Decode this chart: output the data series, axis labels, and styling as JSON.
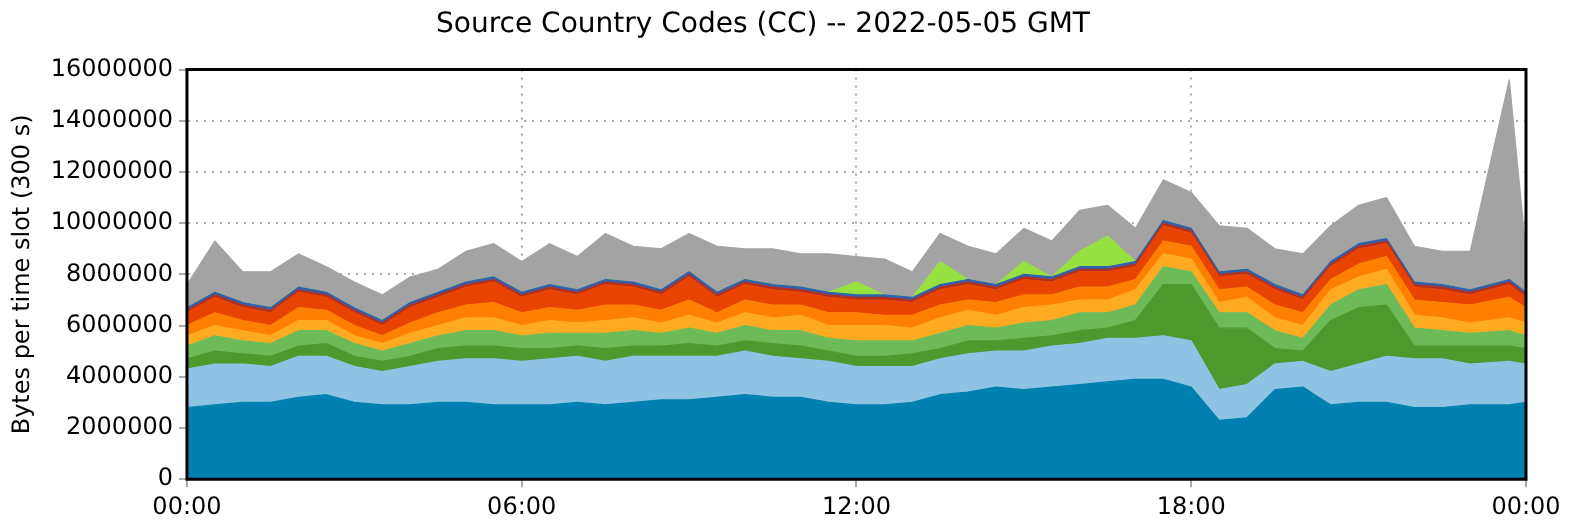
{
  "chart_data": {
    "type": "area",
    "stacked": true,
    "title": "Source Country Codes (CC) -- 2022-05-05 GMT",
    "ylabel": "Bytes per time slot (300 s)",
    "x": [
      0,
      0.5,
      1,
      1.5,
      2,
      2.5,
      3,
      3.5,
      4,
      4.5,
      5,
      5.5,
      6,
      6.5,
      7,
      7.5,
      8,
      8.5,
      9,
      9.5,
      10,
      10.5,
      11,
      11.5,
      12,
      12.5,
      13,
      13.5,
      14,
      14.5,
      15,
      15.5,
      16,
      16.5,
      17,
      17.5,
      18,
      18.5,
      19,
      19.5,
      20,
      20.5,
      21,
      21.5,
      22,
      22.5,
      23,
      23.7,
      24
    ],
    "xlim": [
      0,
      24
    ],
    "xticks": [
      {
        "value": 0,
        "label": "00:00"
      },
      {
        "value": 6,
        "label": "06:00"
      },
      {
        "value": 12,
        "label": "12:00"
      },
      {
        "value": 18,
        "label": "18:00"
      },
      {
        "value": 24,
        "label": "00:00"
      }
    ],
    "ylim": [
      0,
      16000000
    ],
    "yticks": [
      0,
      2000000,
      4000000,
      6000000,
      8000000,
      10000000,
      12000000,
      14000000,
      16000000
    ],
    "grid": true,
    "legend": false,
    "marker": "none",
    "series": [
      {
        "color": "#0080b0",
        "values": [
          2800000,
          2900000,
          3000000,
          3000000,
          3200000,
          3300000,
          3000000,
          2900000,
          2900000,
          3000000,
          3000000,
          2900000,
          2900000,
          2900000,
          3000000,
          2900000,
          3000000,
          3100000,
          3100000,
          3200000,
          3300000,
          3200000,
          3200000,
          3000000,
          2900000,
          2900000,
          3000000,
          3300000,
          3400000,
          3600000,
          3500000,
          3600000,
          3700000,
          3800000,
          3900000,
          3900000,
          3600000,
          2300000,
          2400000,
          3500000,
          3600000,
          2900000,
          3000000,
          3000000,
          2800000,
          2800000,
          2900000,
          2900000,
          3000000
        ]
      },
      {
        "color": "#8ec3e4",
        "values": [
          1500000,
          1600000,
          1500000,
          1400000,
          1600000,
          1500000,
          1400000,
          1300000,
          1500000,
          1600000,
          1700000,
          1800000,
          1700000,
          1800000,
          1800000,
          1700000,
          1800000,
          1700000,
          1700000,
          1600000,
          1700000,
          1600000,
          1500000,
          1600000,
          1500000,
          1500000,
          1400000,
          1400000,
          1500000,
          1400000,
          1500000,
          1600000,
          1600000,
          1700000,
          1600000,
          1700000,
          1800000,
          1200000,
          1300000,
          1000000,
          1000000,
          1300000,
          1500000,
          1800000,
          1900000,
          1900000,
          1600000,
          1700000,
          1500000
        ]
      },
      {
        "color": "#4c9a2e",
        "values": [
          400000,
          500000,
          400000,
          400000,
          400000,
          500000,
          400000,
          400000,
          400000,
          500000,
          500000,
          500000,
          500000,
          400000,
          400000,
          500000,
          400000,
          400000,
          500000,
          400000,
          400000,
          500000,
          500000,
          400000,
          400000,
          400000,
          500000,
          400000,
          500000,
          400000,
          500000,
          400000,
          500000,
          400000,
          700000,
          2000000,
          2200000,
          2400000,
          2200000,
          600000,
          400000,
          2000000,
          2200000,
          2000000,
          500000,
          500000,
          700000,
          600000,
          600000
        ]
      },
      {
        "color": "#6dbb58",
        "values": [
          500000,
          600000,
          500000,
          500000,
          600000,
          500000,
          500000,
          400000,
          500000,
          500000,
          600000,
          600000,
          500000,
          600000,
          500000,
          600000,
          600000,
          500000,
          600000,
          500000,
          600000,
          500000,
          600000,
          500000,
          600000,
          600000,
          500000,
          600000,
          600000,
          500000,
          600000,
          600000,
          700000,
          600000,
          600000,
          700000,
          500000,
          600000,
          600000,
          700000,
          500000,
          600000,
          700000,
          800000,
          700000,
          600000,
          500000,
          600000,
          500000
        ]
      },
      {
        "color": "#ffaa20",
        "values": [
          400000,
          400000,
          400000,
          300000,
          400000,
          400000,
          300000,
          300000,
          400000,
          400000,
          500000,
          500000,
          400000,
          500000,
          400000,
          500000,
          500000,
          400000,
          500000,
          400000,
          500000,
          500000,
          600000,
          500000,
          600000,
          600000,
          500000,
          600000,
          600000,
          500000,
          600000,
          600000,
          500000,
          500000,
          600000,
          500000,
          500000,
          400000,
          600000,
          500000,
          500000,
          600000,
          500000,
          600000,
          500000,
          500000,
          400000,
          500000,
          500000
        ]
      },
      {
        "color": "#ff8000",
        "values": [
          400000,
          500000,
          400000,
          400000,
          500000,
          400000,
          400000,
          300000,
          400000,
          500000,
          500000,
          600000,
          500000,
          500000,
          500000,
          600000,
          500000,
          500000,
          600000,
          400000,
          500000,
          500000,
          400000,
          500000,
          500000,
          400000,
          500000,
          500000,
          400000,
          500000,
          500000,
          400000,
          500000,
          500000,
          400000,
          500000,
          500000,
          500000,
          400000,
          500000,
          500000,
          400000,
          500000,
          500000,
          600000,
          600000,
          700000,
          800000,
          600000
        ]
      },
      {
        "color": "#e84400",
        "values": [
          500000,
          600000,
          500000,
          500000,
          600000,
          500000,
          500000,
          400000,
          600000,
          600000,
          700000,
          800000,
          600000,
          700000,
          600000,
          800000,
          700000,
          600000,
          900000,
          600000,
          600000,
          600000,
          500000,
          600000,
          500000,
          600000,
          500000,
          600000,
          600000,
          500000,
          600000,
          500000,
          600000,
          600000,
          500000,
          600000,
          500000,
          500000,
          500000,
          600000,
          500000,
          500000,
          600000,
          500000,
          500000,
          500000,
          400000,
          500000,
          400000
        ]
      },
      {
        "color": "#b03020",
        "values": [
          100000,
          100000,
          100000,
          100000,
          100000,
          100000,
          100000,
          100000,
          100000,
          100000,
          100000,
          100000,
          100000,
          100000,
          100000,
          100000,
          100000,
          100000,
          100000,
          100000,
          100000,
          100000,
          100000,
          100000,
          100000,
          100000,
          100000,
          100000,
          100000,
          100000,
          100000,
          100000,
          100000,
          100000,
          100000,
          100000,
          100000,
          100000,
          100000,
          100000,
          100000,
          100000,
          100000,
          100000,
          100000,
          100000,
          100000,
          100000,
          100000
        ]
      },
      {
        "color": "#3060b0",
        "values": [
          100000,
          100000,
          100000,
          100000,
          100000,
          100000,
          100000,
          100000,
          100000,
          100000,
          100000,
          100000,
          100000,
          100000,
          100000,
          100000,
          100000,
          100000,
          100000,
          100000,
          100000,
          100000,
          100000,
          100000,
          100000,
          100000,
          100000,
          100000,
          100000,
          100000,
          100000,
          100000,
          100000,
          100000,
          100000,
          100000,
          100000,
          100000,
          100000,
          100000,
          100000,
          100000,
          100000,
          100000,
          100000,
          100000,
          100000,
          100000,
          100000
        ]
      },
      {
        "color": "#96e040",
        "values": [
          0,
          0,
          0,
          0,
          0,
          0,
          0,
          0,
          0,
          0,
          0,
          0,
          0,
          0,
          0,
          0,
          0,
          0,
          0,
          0,
          0,
          0,
          0,
          0,
          500000,
          0,
          0,
          900000,
          0,
          0,
          500000,
          0,
          600000,
          1200000,
          0,
          0,
          0,
          0,
          0,
          0,
          0,
          0,
          0,
          0,
          0,
          0,
          0,
          0,
          0
        ]
      },
      {
        "color": "#a3a3a3",
        "values": [
          900000,
          2000000,
          1200000,
          1400000,
          1300000,
          1000000,
          1000000,
          1000000,
          1000000,
          900000,
          1200000,
          1300000,
          1200000,
          1600000,
          1300000,
          1800000,
          1400000,
          1600000,
          1500000,
          1800000,
          1200000,
          1400000,
          1300000,
          1500000,
          1000000,
          1400000,
          1000000,
          1100000,
          1300000,
          1200000,
          1300000,
          1400000,
          1600000,
          1200000,
          1300000,
          1600000,
          1400000,
          1800000,
          1600000,
          1400000,
          1600000,
          1400000,
          1500000,
          1600000,
          1400000,
          1300000,
          1500000,
          7800000,
          1600000
        ]
      }
    ]
  }
}
